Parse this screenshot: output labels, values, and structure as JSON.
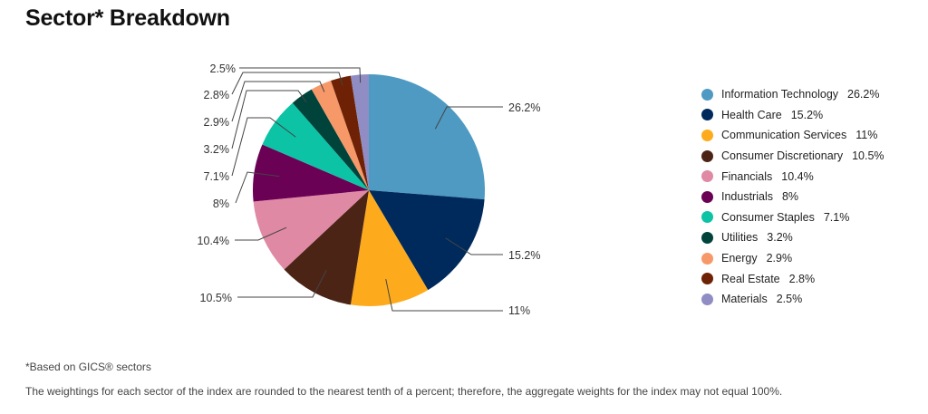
{
  "page": {
    "title": "Sector* Breakdown",
    "footnote": "*Based on GICS® sectors",
    "disclaimer": "The weightings for each sector of the index are rounded to the nearest tenth of a percent; therefore, the aggregate weights for the index may not equal 100%."
  },
  "chart_data": {
    "type": "pie",
    "title": "Sector* Breakdown",
    "unit": "%",
    "legend_position": "right",
    "start_angle_deg": 0,
    "direction": "clockwise from 12 o'clock",
    "categories": [
      "Information Technology",
      "Health Care",
      "Communication Services",
      "Consumer Discretionary",
      "Financials",
      "Industrials",
      "Consumer Staples",
      "Utilities",
      "Energy",
      "Real Estate",
      "Materials"
    ],
    "values": [
      26.2,
      15.2,
      11,
      10.5,
      10.4,
      8,
      7.1,
      3.2,
      2.9,
      2.8,
      2.5
    ],
    "labels": [
      "26.2%",
      "15.2%",
      "11%",
      "10.5%",
      "10.4%",
      "8%",
      "7.1%",
      "3.2%",
      "2.9%",
      "2.8%",
      "2.5%"
    ],
    "colors": [
      "#4f9ac2",
      "#002a5c",
      "#fdab1d",
      "#4b2416",
      "#df89a4",
      "#6a0155",
      "#0cc3a5",
      "#00433a",
      "#f79869",
      "#6e2104",
      "#8f8dc3"
    ]
  },
  "legend": {
    "items": [
      {
        "label": "Information Technology",
        "value": "26.2%",
        "color": "#4f9ac2"
      },
      {
        "label": "Health Care",
        "value": "15.2%",
        "color": "#002a5c"
      },
      {
        "label": "Communication Services",
        "value": "11%",
        "color": "#fdab1d"
      },
      {
        "label": "Consumer Discretionary",
        "value": "10.5%",
        "color": "#4b2416"
      },
      {
        "label": "Financials",
        "value": "10.4%",
        "color": "#df89a4"
      },
      {
        "label": "Industrials",
        "value": "8%",
        "color": "#6a0155"
      },
      {
        "label": "Consumer Staples",
        "value": "7.1%",
        "color": "#0cc3a5"
      },
      {
        "label": "Utilities",
        "value": "3.2%",
        "color": "#00433a"
      },
      {
        "label": "Energy",
        "value": "2.9%",
        "color": "#f79869"
      },
      {
        "label": "Real Estate",
        "value": "2.8%",
        "color": "#6e2104"
      },
      {
        "label": "Materials",
        "value": "2.5%",
        "color": "#8f8dc3"
      }
    ]
  }
}
